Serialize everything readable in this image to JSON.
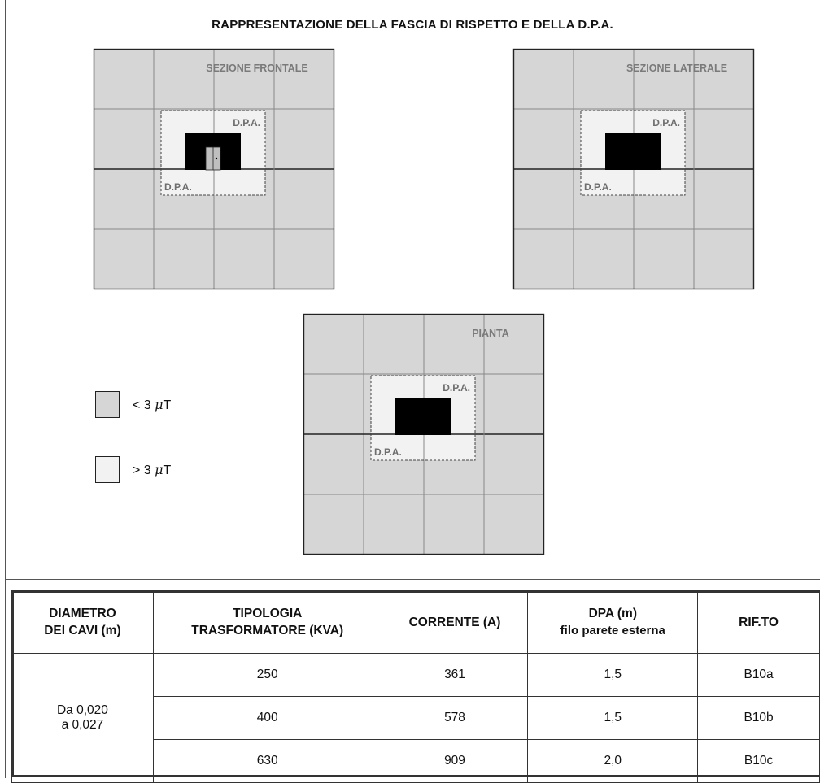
{
  "title": "RAPPRESENTAZIONE DELLA FASCIA DI RISPETTO E DELLA D.P.A.",
  "diagram": {
    "views": [
      {
        "key": "frontale",
        "label": "SEZIONE FRONTALE",
        "dpa_top": "D.P.A.",
        "dpa_bottom": "D.P.A."
      },
      {
        "key": "laterale",
        "label": "SEZIONE LATERALE",
        "dpa_top": "D.P.A.",
        "dpa_bottom": "D.P.A."
      },
      {
        "key": "pianta",
        "label": "PIANTA",
        "dpa_top": "D.P.A.",
        "dpa_bottom": "D.P.A."
      }
    ]
  },
  "legend": [
    {
      "prefix": "< 3 ",
      "unit": "μ",
      "suffix": "T",
      "color": "#d6d6d6"
    },
    {
      "prefix": "> 3 ",
      "unit": "μ",
      "suffix": "T",
      "color": "#f2f2f2"
    }
  ],
  "colors": {
    "low_field": "#d6d6d6",
    "high_field": "#f2f2f2",
    "cabin": "#000000",
    "grid": "#888888"
  },
  "table": {
    "headers": {
      "diametro_line1": "DIAMETRO",
      "diametro_line2": "DEI CAVI (m)",
      "tipologia_line1": "TIPOLOGIA",
      "tipologia_line2": "TRASFORMATORE (KVA)",
      "corrente": "CORRENTE (A)",
      "dpa_line1": "DPA (m)",
      "dpa_line2": "filo parete esterna",
      "rif": "RIF.TO"
    },
    "diametro_line1": "Da 0,020",
    "diametro_line2": "a 0,027",
    "rows": [
      {
        "tipologia": "250",
        "corrente": "361",
        "dpa": "1,5",
        "rif": "B10a"
      },
      {
        "tipologia": "400",
        "corrente": "578",
        "dpa": "1,5",
        "rif": "B10b"
      },
      {
        "tipologia": "630",
        "corrente": "909",
        "dpa": "2,0",
        "rif": "B10c"
      }
    ]
  }
}
